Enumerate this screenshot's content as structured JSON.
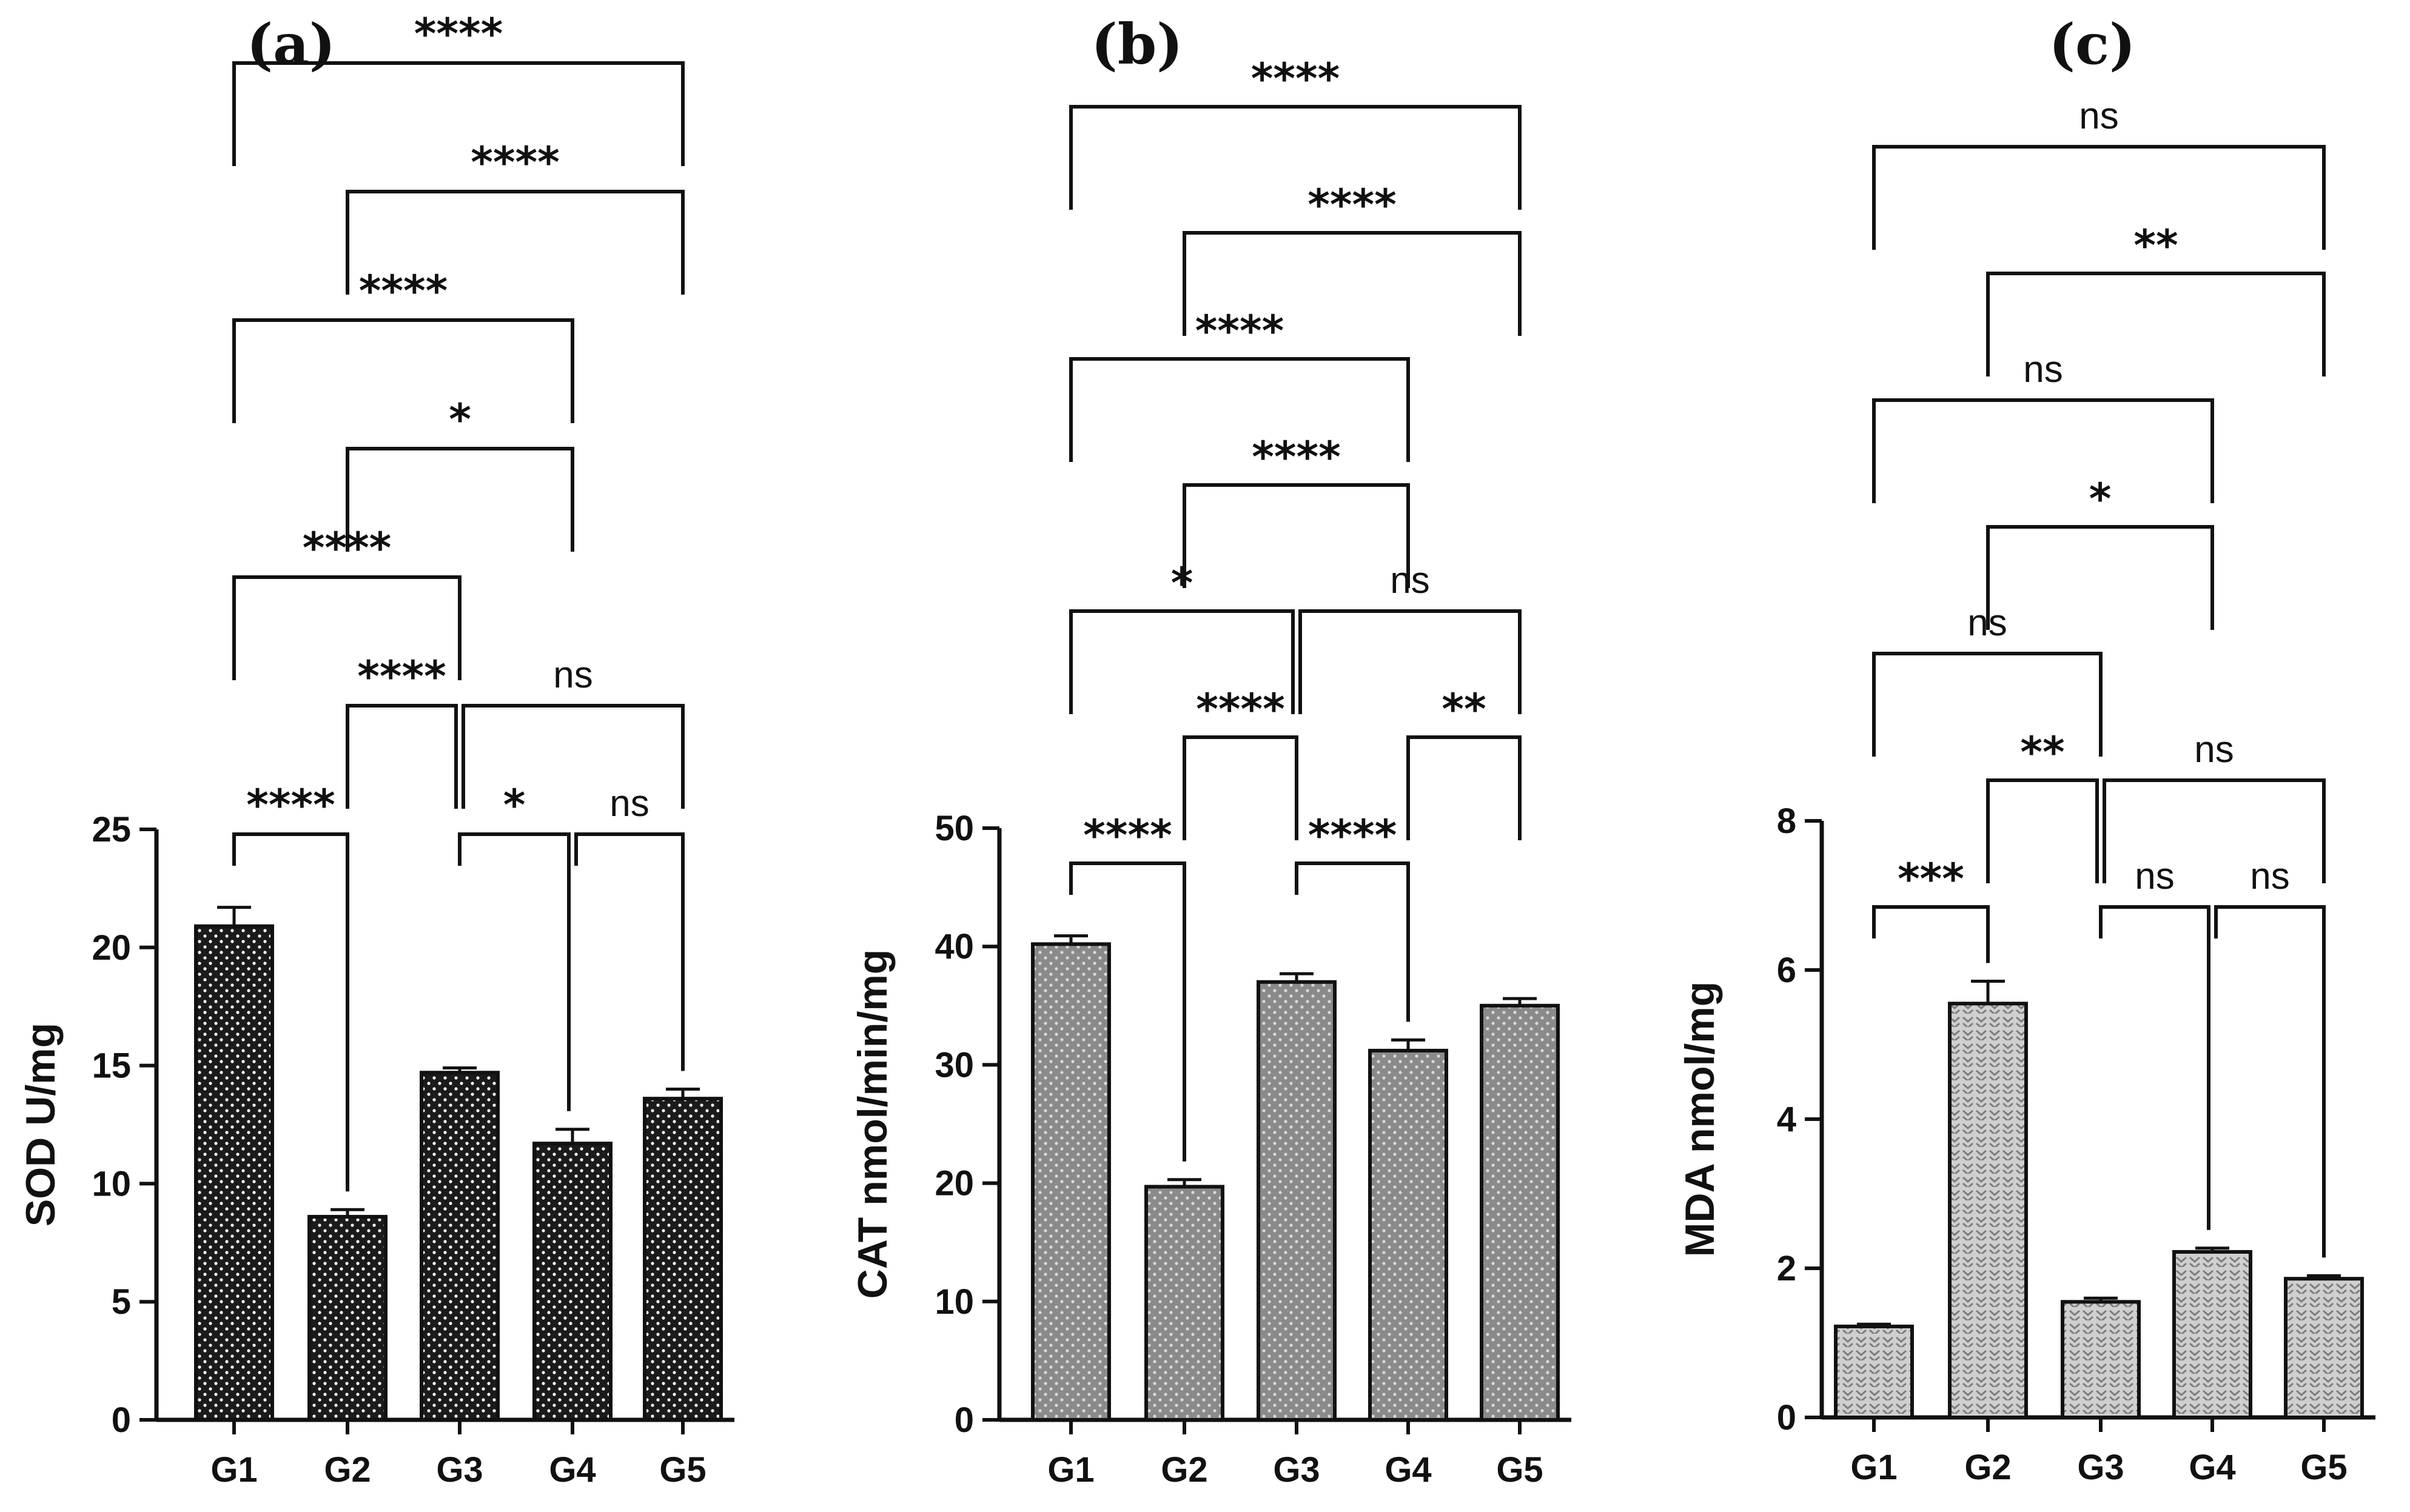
{
  "colors": {
    "ink": "#111111",
    "bar_fill_a": "#1b1b1b",
    "bar_fill_b": "#8a8a8a",
    "bar_fill_c": "#cfcfcf",
    "dot_a": "#ffffff",
    "dot_b": "#d9d9d9",
    "dot_c": "#7d7d7d"
  },
  "chart_data": [
    {
      "id": "a",
      "type": "bar",
      "panel_label": "(a)",
      "title": "",
      "xlabel": "",
      "ylabel": "SOD U/mg",
      "categories": [
        "G1",
        "G2",
        "G3",
        "G4",
        "G5"
      ],
      "values": [
        20.9,
        8.6,
        14.7,
        11.7,
        13.6
      ],
      "errors": [
        0.8,
        0.3,
        0.2,
        0.6,
        0.4
      ],
      "ylim": [
        0,
        25
      ],
      "yticks": [
        0,
        5,
        10,
        15,
        20,
        25
      ],
      "ytick_labels": [
        "0",
        "5",
        "10",
        "15",
        "20",
        "25"
      ],
      "comparisons": [
        {
          "from": 0,
          "to": 1,
          "label": "****",
          "level": 0
        },
        {
          "from": 2,
          "to": 3,
          "label": "*",
          "level": 0
        },
        {
          "from": 3,
          "to": 4,
          "label": "ns",
          "level": 0
        },
        {
          "from": 1,
          "to": 2,
          "label": "****",
          "level": 1
        },
        {
          "from": 2,
          "to": 4,
          "label": "ns",
          "level": 1
        },
        {
          "from": 0,
          "to": 2,
          "label": "****",
          "level": 2
        },
        {
          "from": 1,
          "to": 3,
          "label": "*",
          "level": 3
        },
        {
          "from": 0,
          "to": 3,
          "label": "****",
          "level": 4
        },
        {
          "from": 1,
          "to": 4,
          "label": "****",
          "level": 5
        },
        {
          "from": 0,
          "to": 4,
          "label": "****",
          "level": 6
        }
      ]
    },
    {
      "id": "b",
      "type": "bar",
      "panel_label": "(b)",
      "title": "",
      "xlabel": "",
      "ylabel": "CAT nmol/min/mg",
      "categories": [
        "G1",
        "G2",
        "G3",
        "G4",
        "G5"
      ],
      "values": [
        40.2,
        19.7,
        37.0,
        31.2,
        35.0
      ],
      "errors": [
        0.7,
        0.6,
        0.7,
        0.9,
        0.6
      ],
      "ylim": [
        0,
        50
      ],
      "yticks": [
        0,
        10,
        20,
        30,
        40,
        50
      ],
      "ytick_labels": [
        "0",
        "10",
        "20",
        "30",
        "40",
        "50"
      ],
      "comparisons": [
        {
          "from": 0,
          "to": 1,
          "label": "****",
          "level": 0
        },
        {
          "from": 2,
          "to": 3,
          "label": "****",
          "level": 0
        },
        {
          "from": 1,
          "to": 2,
          "label": "****",
          "level": 1
        },
        {
          "from": 3,
          "to": 4,
          "label": "**",
          "level": 1
        },
        {
          "from": 0,
          "to": 2,
          "label": "*",
          "level": 2
        },
        {
          "from": 2,
          "to": 4,
          "label": "ns",
          "level": 2
        },
        {
          "from": 1,
          "to": 3,
          "label": "****",
          "level": 3
        },
        {
          "from": 0,
          "to": 3,
          "label": "****",
          "level": 4
        },
        {
          "from": 1,
          "to": 4,
          "label": "****",
          "level": 5
        },
        {
          "from": 0,
          "to": 4,
          "label": "****",
          "level": 6
        }
      ]
    },
    {
      "id": "c",
      "type": "bar",
      "panel_label": "(c)",
      "title": "",
      "xlabel": "",
      "ylabel": "MDA nmol/mg",
      "categories": [
        "G1",
        "G2",
        "G3",
        "G4",
        "G5"
      ],
      "values": [
        1.22,
        5.55,
        1.55,
        2.22,
        1.86
      ],
      "errors": [
        0.03,
        0.3,
        0.05,
        0.05,
        0.04
      ],
      "ylim": [
        0,
        8
      ],
      "yticks": [
        0,
        2,
        4,
        6,
        8
      ],
      "ytick_labels": [
        "0",
        "2",
        "4",
        "6",
        "8"
      ],
      "comparisons": [
        {
          "from": 0,
          "to": 1,
          "label": "***",
          "level": 0
        },
        {
          "from": 2,
          "to": 3,
          "label": "ns",
          "level": 0
        },
        {
          "from": 3,
          "to": 4,
          "label": "ns",
          "level": 0
        },
        {
          "from": 1,
          "to": 2,
          "label": "**",
          "level": 1
        },
        {
          "from": 2,
          "to": 4,
          "label": "ns",
          "level": 1
        },
        {
          "from": 0,
          "to": 2,
          "label": "ns",
          "level": 2
        },
        {
          "from": 1,
          "to": 3,
          "label": "*",
          "level": 3
        },
        {
          "from": 0,
          "to": 3,
          "label": "ns",
          "level": 4
        },
        {
          "from": 1,
          "to": 4,
          "label": "**",
          "level": 5
        },
        {
          "from": 0,
          "to": 4,
          "label": "ns",
          "level": 6
        }
      ]
    }
  ]
}
